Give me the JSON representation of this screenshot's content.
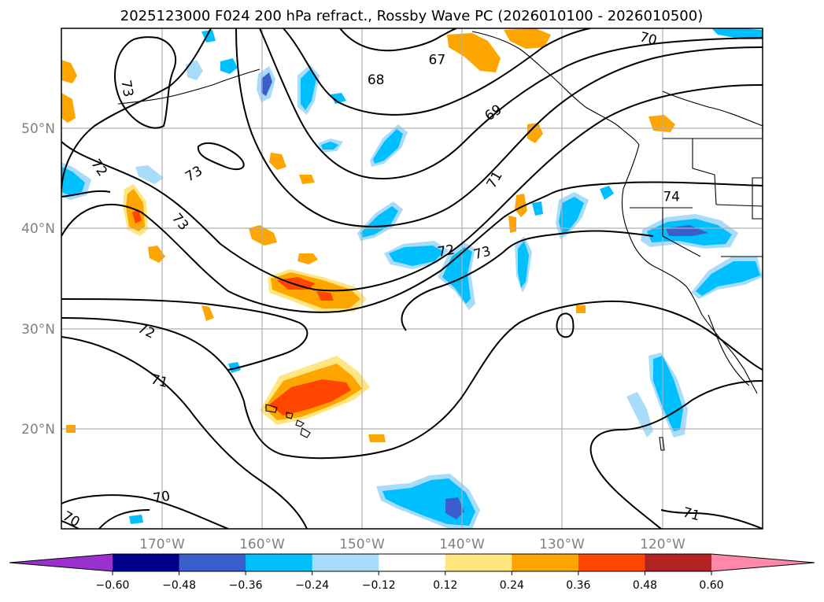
{
  "title": "2025123000 F024 200 hPa refract., Rossby Wave PC (2026010100 - 2026010500)",
  "lat_ticks": [
    {
      "lat": 50,
      "label": "50°N"
    },
    {
      "lat": 40,
      "label": "40°N"
    },
    {
      "lat": 30,
      "label": "30°N"
    },
    {
      "lat": 20,
      "label": "20°N"
    }
  ],
  "lon_ticks": [
    {
      "lon": -170,
      "label": "170°W"
    },
    {
      "lon": -160,
      "label": "160°W"
    },
    {
      "lon": -150,
      "label": "150°W"
    },
    {
      "lon": -140,
      "label": "140°W"
    },
    {
      "lon": -130,
      "label": "130°W"
    },
    {
      "lon": -120,
      "label": "120°W"
    }
  ],
  "map_extent": {
    "lon_min": -180,
    "lon_max": -110,
    "lat_min": 10,
    "lat_max": 60
  },
  "colorbar": {
    "boundaries": [
      "-0.60",
      "-0.48",
      "-0.36",
      "-0.24",
      "-0.12",
      "0.12",
      "0.24",
      "0.36",
      "0.48",
      "0.60"
    ],
    "under_color": "#9b30d0",
    "over_color": "#ff88aa",
    "colors": [
      "#00008b",
      "#3a5fcd",
      "#00bfff",
      "#a8dcfa",
      "#ffffff",
      "#ffe680",
      "#ffa500",
      "#ff4500",
      "#b22222"
    ]
  },
  "contour_labels": [
    {
      "text": "67",
      "lon": -142.5,
      "lat": 56.9,
      "rot": 0
    },
    {
      "text": "68",
      "lon": -148.6,
      "lat": 54.9,
      "rot": 0
    },
    {
      "text": "69",
      "lon": -136.9,
      "lat": 51.6,
      "rot": -35
    },
    {
      "text": "70",
      "lon": -121.4,
      "lat": 59.0,
      "rot": 15
    },
    {
      "text": "71",
      "lon": -136.8,
      "lat": 44.9,
      "rot": -60
    },
    {
      "text": "72",
      "lon": -141.6,
      "lat": 37.8,
      "rot": -10
    },
    {
      "text": "73",
      "lon": -138.0,
      "lat": 37.6,
      "rot": -15
    },
    {
      "text": "73",
      "lon": -173.4,
      "lat": 54.0,
      "rot": 80
    },
    {
      "text": "73",
      "lon": -166.8,
      "lat": 45.5,
      "rot": -30
    },
    {
      "text": "73",
      "lon": -168.1,
      "lat": 40.7,
      "rot": 50
    },
    {
      "text": "74",
      "lon": -119.1,
      "lat": 43.2,
      "rot": 0
    },
    {
      "text": "72",
      "lon": -171.5,
      "lat": 29.8,
      "rot": 25
    },
    {
      "text": "71",
      "lon": -170.2,
      "lat": 24.8,
      "rot": 15
    },
    {
      "text": "70",
      "lon": -170.0,
      "lat": 13.2,
      "rot": -10
    },
    {
      "text": "70",
      "lon": -179.0,
      "lat": 11.0,
      "rot": 30
    },
    {
      "text": "71",
      "lon": -117.1,
      "lat": 11.5,
      "rot": 15
    },
    {
      "text": "72",
      "lon": -176.2,
      "lat": 46.1,
      "rot": 55
    }
  ]
}
